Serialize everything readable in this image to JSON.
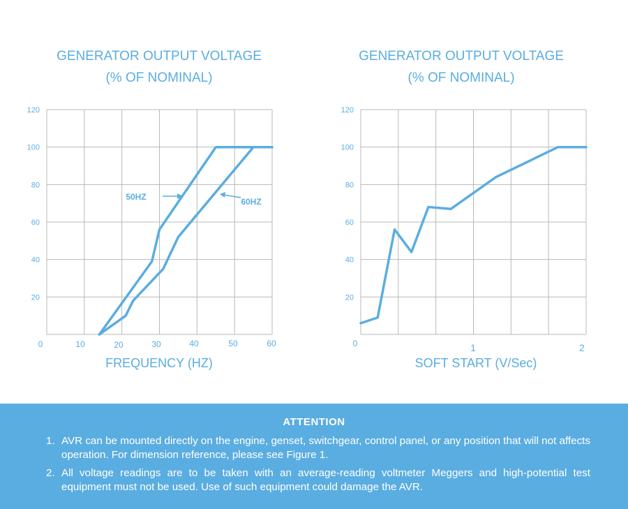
{
  "charts": [
    {
      "id": "left",
      "title_line1": "GENERATOR OUTPUT VOLTAGE",
      "title_line2": "(% OF NOMINAL)",
      "xlabel": "FREQUENCY (HZ)",
      "annotations": [
        "50HZ",
        "60HZ"
      ]
    },
    {
      "id": "right",
      "title_line1": "GENERATOR OUTPUT VOLTAGE",
      "title_line2": "(% OF NOMINAL)",
      "xlabel": "SOFT START (V/Sec)",
      "annotations": []
    }
  ],
  "chart_data": [
    {
      "type": "line",
      "title": "GENERATOR OUTPUT VOLTAGE (% OF NOMINAL)",
      "xlabel": "FREQUENCY (HZ)",
      "ylabel": "",
      "xlim": [
        0,
        60
      ],
      "ylim": [
        0,
        120
      ],
      "x_ticks": [
        "0",
        "10",
        "20",
        "30",
        "40",
        "50",
        "60"
      ],
      "y_ticks": [
        "20",
        "40",
        "60",
        "80",
        "100",
        "120"
      ],
      "grid": true,
      "color": "#5aade0",
      "series": [
        {
          "name": "50HZ",
          "points": [
            [
              14,
              0
            ],
            [
              28,
              39
            ],
            [
              30,
              56
            ],
            [
              45,
              100
            ],
            [
              60,
              100
            ]
          ]
        },
        {
          "name": "60HZ",
          "points": [
            [
              14,
              0
            ],
            [
              21,
              10
            ],
            [
              23,
              18
            ],
            [
              31,
              35
            ],
            [
              35,
              52
            ],
            [
              55,
              100
            ],
            [
              60,
              100
            ]
          ]
        }
      ]
    },
    {
      "type": "line",
      "title": "GENERATOR OUTPUT VOLTAGE (% OF NOMINAL)",
      "xlabel": "SOFT START (V/Sec)",
      "ylabel": "",
      "xlim": [
        0,
        2
      ],
      "ylim": [
        0,
        120
      ],
      "x_ticks": [
        "0",
        "1",
        "2"
      ],
      "y_ticks": [
        "20",
        "40",
        "60",
        "80",
        "100",
        "120"
      ],
      "grid": true,
      "color": "#5aade0",
      "series": [
        {
          "points": [
            [
              0,
              6
            ],
            [
              0.15,
              9
            ],
            [
              0.3,
              56
            ],
            [
              0.45,
              44
            ],
            [
              0.6,
              68
            ],
            [
              0.8,
              67
            ],
            [
              1.2,
              84
            ],
            [
              1.75,
              100
            ],
            [
              2,
              100
            ]
          ]
        }
      ]
    }
  ],
  "attention": {
    "title": "ATTENTION",
    "items": [
      {
        "num": "1.",
        "text": "AVR can be mounted directly on the engine, genset, switchgear, control panel, or any position that will not affects operation. For dimension reference, please see Figure 1."
      },
      {
        "num": "2.",
        "text": "All voltage readings are to be taken with an average-reading voltmeter Meggers and high-potential test equipment must not be used. Use of such equipment could damage the AVR."
      }
    ]
  }
}
